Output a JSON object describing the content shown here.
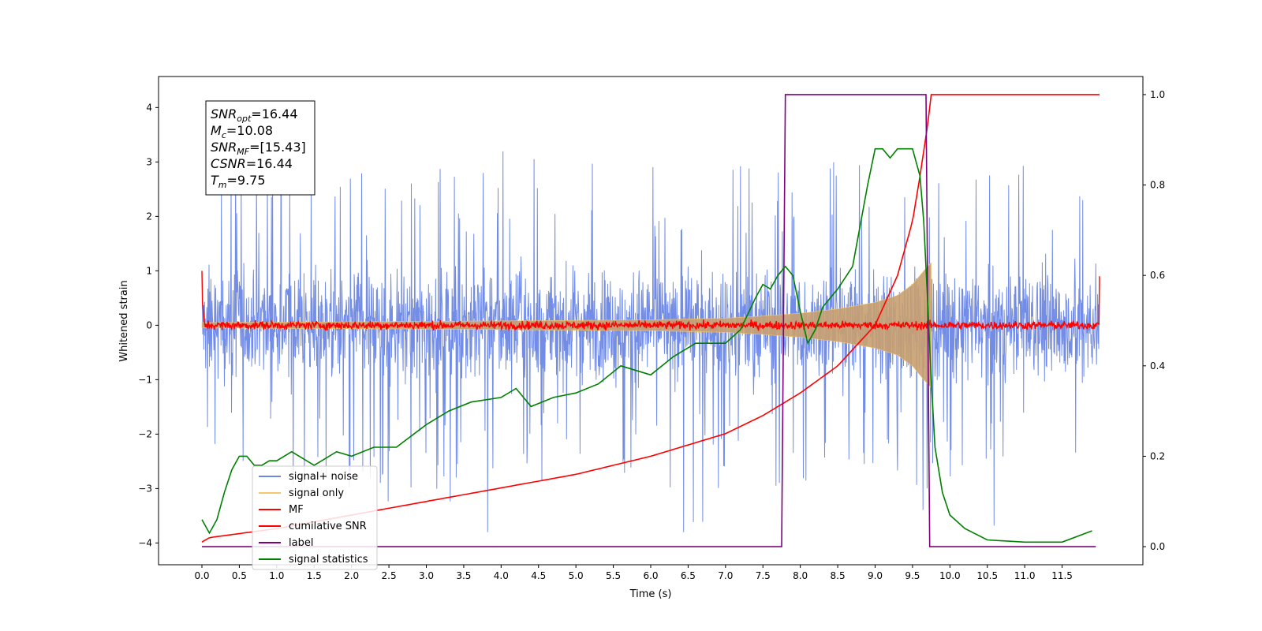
{
  "chart_data": {
    "type": "line",
    "xlabel": "Time (s)",
    "ylabel_left": "Whitened strain",
    "ylabel_right": "",
    "xlim": [
      -0.58,
      12.58
    ],
    "ylim_left": [
      -4.4,
      4.57
    ],
    "ylim_right": [
      -0.04,
      1.04
    ],
    "x_ticks": [
      0,
      0.5,
      1,
      1.5,
      2,
      2.5,
      3,
      3.5,
      4,
      4.5,
      5,
      5.5,
      6,
      6.5,
      7,
      7.5,
      8,
      8.5,
      9,
      9.5,
      10,
      10.5,
      11,
      11.5
    ],
    "x_tick_labels": [
      "0.0",
      "0.5",
      "1.0",
      "1.5",
      "2.0",
      "2.5",
      "3.0",
      "3.5",
      "4.0",
      "4.5",
      "5.0",
      "5.5",
      "6.0",
      "6.5",
      "7.0",
      "7.5",
      "8.0",
      "8.5",
      "9.0",
      "9.5",
      "10.0",
      "10.5",
      "11.0",
      "11.5"
    ],
    "y_ticks_left": [
      4,
      3,
      2,
      1,
      0,
      -1,
      -2,
      -3,
      -4
    ],
    "y_tick_labels_left": [
      "4",
      "3",
      "2",
      "1",
      "0",
      "−1",
      "−2",
      "−3",
      "−4"
    ],
    "y_ticks_right": [
      1.0,
      0.8,
      0.6,
      0.4,
      0.2,
      0.0
    ],
    "y_tick_labels_right": [
      "1.0",
      "0.8",
      "0.6",
      "0.4",
      "0.2",
      "0.0"
    ],
    "grid": false,
    "legend_position": "lower-left",
    "annotation": {
      "lines": [
        {
          "base": "SNR",
          "sub": "opt",
          "value": "=16.44"
        },
        {
          "base": "M",
          "sub": "c",
          "value": "=10.08"
        },
        {
          "base": "SNR",
          "sub": "MF",
          "value": "=[15.43]"
        },
        {
          "base": "CSNR",
          "sub": "",
          "value": "=16.44"
        },
        {
          "base": "T",
          "sub": "m",
          "value": "=9.75"
        }
      ]
    },
    "series": [
      {
        "name": "signal+ noise",
        "color": "#6b87e6",
        "axis": "left",
        "kind": "noise",
        "x_range": [
          0,
          12
        ],
        "amplitude": 1.5,
        "spikes_range": [
          -3.8,
          4.2
        ]
      },
      {
        "name": "signal only",
        "color": "#f5c86e",
        "axis": "left",
        "kind": "chirp-envelope",
        "x_range": [
          0,
          9.75
        ],
        "envelope": [
          [
            0,
            0.05
          ],
          [
            3,
            0.07
          ],
          [
            5,
            0.09
          ],
          [
            6,
            0.1
          ],
          [
            7,
            0.13
          ],
          [
            7.5,
            0.17
          ],
          [
            8,
            0.22
          ],
          [
            8.5,
            0.3
          ],
          [
            9,
            0.42
          ],
          [
            9.3,
            0.55
          ],
          [
            9.5,
            0.75
          ],
          [
            9.65,
            1.0
          ],
          [
            9.75,
            1.15
          ]
        ]
      },
      {
        "name": "MF",
        "color": "#ff0000",
        "axis": "left",
        "kind": "noise",
        "x_range": [
          0,
          12
        ],
        "amplitude": 0.12,
        "edge_values": [
          1.0,
          0.9
        ]
      },
      {
        "name": "cumilative SNR",
        "color": "#ff0000",
        "axis": "right",
        "x": [
          0,
          0.1,
          1,
          2,
          3,
          4,
          5,
          6,
          7,
          7.5,
          8,
          8.5,
          9,
          9.3,
          9.5,
          9.6,
          9.7,
          9.75,
          12
        ],
        "y": [
          0.01,
          0.02,
          0.04,
          0.07,
          0.1,
          0.13,
          0.16,
          0.2,
          0.25,
          0.29,
          0.34,
          0.4,
          0.49,
          0.6,
          0.72,
          0.82,
          0.93,
          1.0,
          1.0
        ]
      },
      {
        "name": "label",
        "color": "#800080",
        "axis": "right",
        "x": [
          0,
          7.75,
          7.8,
          9.68,
          9.73,
          11.95
        ],
        "y": [
          0,
          0,
          1,
          1,
          0,
          0
        ]
      },
      {
        "name": "signal statistics",
        "color": "#008000",
        "axis": "right",
        "x": [
          0,
          0.1,
          0.2,
          0.3,
          0.4,
          0.5,
          0.6,
          0.7,
          0.8,
          0.9,
          1.0,
          1.2,
          1.5,
          1.8,
          2.0,
          2.3,
          2.6,
          3.0,
          3.3,
          3.6,
          4.0,
          4.2,
          4.4,
          4.7,
          5.0,
          5.3,
          5.6,
          6.0,
          6.3,
          6.6,
          7.0,
          7.2,
          7.4,
          7.5,
          7.6,
          7.7,
          7.8,
          7.9,
          8.0,
          8.1,
          8.2,
          8.3,
          8.4,
          8.5,
          8.7,
          8.9,
          9.0,
          9.1,
          9.2,
          9.3,
          9.4,
          9.5,
          9.6,
          9.65,
          9.7,
          9.75,
          9.8,
          9.9,
          10.0,
          10.2,
          10.5,
          11.0,
          11.5,
          11.9
        ],
        "y": [
          0.06,
          0.03,
          0.06,
          0.12,
          0.17,
          0.2,
          0.2,
          0.18,
          0.18,
          0.19,
          0.19,
          0.21,
          0.18,
          0.21,
          0.2,
          0.22,
          0.22,
          0.27,
          0.3,
          0.32,
          0.33,
          0.35,
          0.31,
          0.33,
          0.34,
          0.36,
          0.4,
          0.38,
          0.42,
          0.45,
          0.45,
          0.48,
          0.55,
          0.58,
          0.57,
          0.6,
          0.62,
          0.6,
          0.52,
          0.45,
          0.48,
          0.53,
          0.55,
          0.57,
          0.62,
          0.8,
          0.88,
          0.88,
          0.86,
          0.88,
          0.88,
          0.88,
          0.82,
          0.72,
          0.55,
          0.37,
          0.22,
          0.12,
          0.07,
          0.04,
          0.015,
          0.01,
          0.01,
          0.035
        ]
      }
    ]
  }
}
